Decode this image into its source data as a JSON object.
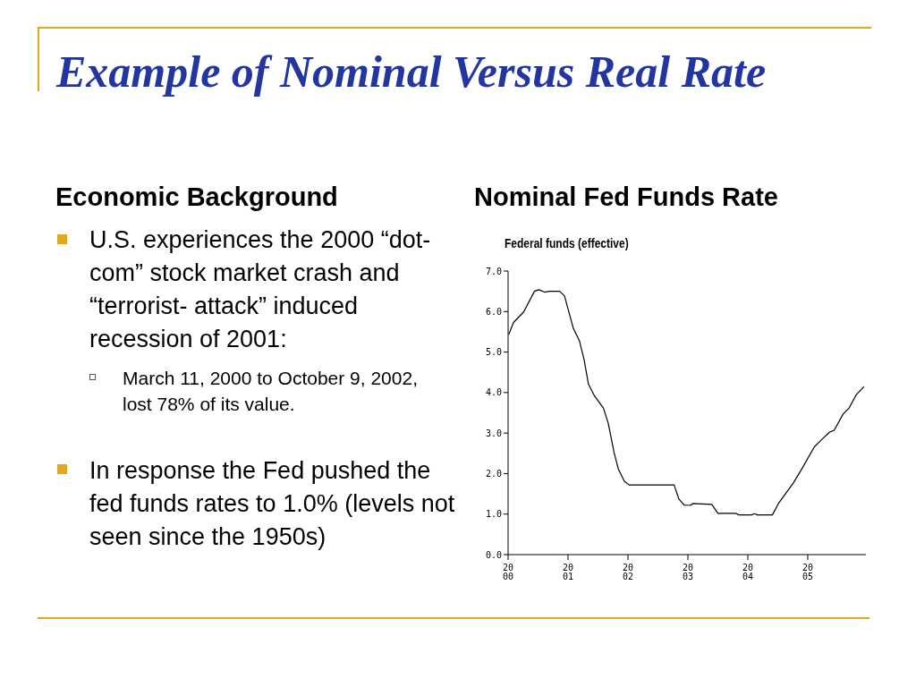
{
  "chart_data": {
    "type": "line",
    "title": "Example of Nominal Versus Real Rate",
    "subtitle": "Nominal Fed Funds Rate",
    "annotations": [
      "Federal funds (effective)",
      "Economic Background",
      "U.S. experiences the 2000 “dot-com” stock market crash and “terrorist- attack” induced recession of 2001:",
      "March 11, 2000 to October 9, 2002, lost 78% of its value.",
      "In response the Fed pushed the fed funds rates to 1.0% (levels not seen since the 1950s)"
    ],
    "series": [
      {
        "color": "#000000",
        "x": [
          2000.01,
          2000.09,
          2000.26,
          2000.44,
          2000.51,
          2000.61,
          2000.69,
          2000.86,
          2000.94,
          2001.09,
          2001.19,
          2001.27,
          2001.34,
          2001.44,
          2001.59,
          2001.67,
          2001.77,
          2001.84,
          2001.94,
          2002.02,
          2002.77,
          2002.85,
          2002.94,
          2003.05,
          2003.08,
          2003.4,
          2003.5,
          2003.8,
          2003.85,
          2004.06,
          2004.11,
          2004.16,
          2004.41,
          2004.51,
          2004.76,
          2004.91,
          2005.11,
          2005.26,
          2005.36,
          2005.44,
          2005.59,
          2005.69,
          2005.81,
          2005.94
        ],
        "values": [
          5.43,
          5.73,
          5.99,
          6.5,
          6.54,
          6.48,
          6.5,
          6.5,
          6.39,
          5.58,
          5.28,
          4.8,
          4.21,
          3.92,
          3.62,
          3.25,
          2.51,
          2.11,
          1.81,
          1.72,
          1.72,
          1.37,
          1.22,
          1.22,
          1.26,
          1.24,
          1.02,
          1.02,
          0.98,
          0.98,
          1.01,
          0.98,
          0.98,
          1.26,
          1.77,
          2.14,
          2.66,
          2.88,
          3.02,
          3.07,
          3.47,
          3.62,
          3.95,
          4.15
        ]
      }
    ],
    "xlim": [
      2000,
      2005.97
    ],
    "xticks": [
      {
        "value": 2000,
        "label": "2000"
      },
      {
        "value": 2001,
        "label": "2001"
      },
      {
        "value": 2002,
        "label": "2002"
      },
      {
        "value": 2003,
        "label": "2003"
      },
      {
        "value": 2004,
        "label": "2004"
      },
      {
        "value": 2005,
        "label": "2005"
      }
    ],
    "ylim": [
      0,
      7
    ],
    "yticks": [
      {
        "value": 0,
        "label": "0.0"
      },
      {
        "value": 1,
        "label": "1.0"
      },
      {
        "value": 2,
        "label": "2.0"
      },
      {
        "value": 3,
        "label": "3.0"
      },
      {
        "value": 4,
        "label": "4.0"
      },
      {
        "value": 5,
        "label": "5.0"
      },
      {
        "value": 6,
        "label": "6.0"
      },
      {
        "value": 7,
        "label": "7.0"
      }
    ],
    "grid": false,
    "legend": false
  }
}
